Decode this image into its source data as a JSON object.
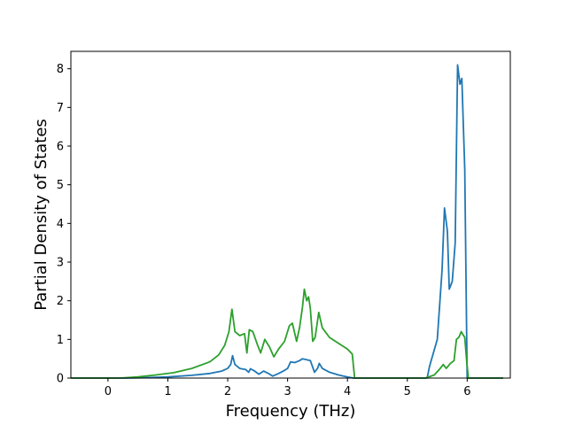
{
  "chart_data": {
    "type": "line",
    "xlabel": "Frequency (THz)",
    "ylabel": "Partial Density of States",
    "xlim": [
      -0.62,
      6.72
    ],
    "ylim": [
      0,
      8.45
    ],
    "xticks": [
      0,
      1,
      2,
      3,
      4,
      5,
      6
    ],
    "yticks": [
      0,
      1,
      2,
      3,
      4,
      5,
      6,
      7,
      8
    ],
    "grid": false,
    "series": [
      {
        "color": "#1f77b4",
        "points": [
          [
            -0.62,
            0
          ],
          [
            0.3,
            0.0
          ],
          [
            0.6,
            0.01
          ],
          [
            1.0,
            0.03
          ],
          [
            1.4,
            0.07
          ],
          [
            1.7,
            0.12
          ],
          [
            1.9,
            0.18
          ],
          [
            2.0,
            0.25
          ],
          [
            2.05,
            0.35
          ],
          [
            2.08,
            0.58
          ],
          [
            2.12,
            0.35
          ],
          [
            2.2,
            0.25
          ],
          [
            2.3,
            0.22
          ],
          [
            2.35,
            0.15
          ],
          [
            2.38,
            0.24
          ],
          [
            2.45,
            0.18
          ],
          [
            2.52,
            0.1
          ],
          [
            2.6,
            0.18
          ],
          [
            2.68,
            0.12
          ],
          [
            2.75,
            0.05
          ],
          [
            2.85,
            0.12
          ],
          [
            2.95,
            0.2
          ],
          [
            3.0,
            0.25
          ],
          [
            3.05,
            0.42
          ],
          [
            3.12,
            0.4
          ],
          [
            3.2,
            0.45
          ],
          [
            3.25,
            0.5
          ],
          [
            3.3,
            0.48
          ],
          [
            3.38,
            0.45
          ],
          [
            3.45,
            0.15
          ],
          [
            3.5,
            0.25
          ],
          [
            3.53,
            0.38
          ],
          [
            3.58,
            0.25
          ],
          [
            3.7,
            0.15
          ],
          [
            3.85,
            0.08
          ],
          [
            4.0,
            0.03
          ],
          [
            4.1,
            0.0
          ],
          [
            5.33,
            0.0
          ],
          [
            5.37,
            0.3
          ],
          [
            5.5,
            1.0
          ],
          [
            5.58,
            2.8
          ],
          [
            5.62,
            4.4
          ],
          [
            5.67,
            3.8
          ],
          [
            5.7,
            2.3
          ],
          [
            5.75,
            2.5
          ],
          [
            5.8,
            3.5
          ],
          [
            5.84,
            8.1
          ],
          [
            5.88,
            7.6
          ],
          [
            5.91,
            7.75
          ],
          [
            5.96,
            5.4
          ],
          [
            6.0,
            0.0
          ],
          [
            6.6,
            0.0
          ]
        ]
      },
      {
        "color": "#2ca02c",
        "points": [
          [
            -0.62,
            0
          ],
          [
            0.2,
            0.0
          ],
          [
            0.5,
            0.03
          ],
          [
            0.8,
            0.08
          ],
          [
            1.1,
            0.14
          ],
          [
            1.4,
            0.25
          ],
          [
            1.7,
            0.42
          ],
          [
            1.85,
            0.6
          ],
          [
            1.95,
            0.85
          ],
          [
            2.02,
            1.2
          ],
          [
            2.07,
            1.78
          ],
          [
            2.12,
            1.2
          ],
          [
            2.2,
            1.1
          ],
          [
            2.28,
            1.15
          ],
          [
            2.32,
            0.65
          ],
          [
            2.36,
            1.25
          ],
          [
            2.42,
            1.2
          ],
          [
            2.5,
            0.85
          ],
          [
            2.55,
            0.65
          ],
          [
            2.62,
            1.0
          ],
          [
            2.7,
            0.8
          ],
          [
            2.77,
            0.55
          ],
          [
            2.85,
            0.75
          ],
          [
            2.95,
            0.95
          ],
          [
            3.03,
            1.35
          ],
          [
            3.08,
            1.42
          ],
          [
            3.15,
            0.95
          ],
          [
            3.2,
            1.3
          ],
          [
            3.25,
            1.85
          ],
          [
            3.28,
            2.3
          ],
          [
            3.32,
            2.0
          ],
          [
            3.35,
            2.1
          ],
          [
            3.38,
            1.8
          ],
          [
            3.42,
            0.95
          ],
          [
            3.46,
            1.05
          ],
          [
            3.52,
            1.7
          ],
          [
            3.58,
            1.3
          ],
          [
            3.7,
            1.05
          ],
          [
            3.85,
            0.9
          ],
          [
            4.0,
            0.75
          ],
          [
            4.08,
            0.62
          ],
          [
            4.12,
            0.0
          ],
          [
            5.3,
            0.0
          ],
          [
            5.45,
            0.08
          ],
          [
            5.55,
            0.25
          ],
          [
            5.6,
            0.35
          ],
          [
            5.65,
            0.25
          ],
          [
            5.72,
            0.38
          ],
          [
            5.78,
            0.45
          ],
          [
            5.82,
            1.0
          ],
          [
            5.86,
            1.05
          ],
          [
            5.9,
            1.2
          ],
          [
            5.96,
            1.05
          ],
          [
            5.99,
            0.45
          ],
          [
            6.02,
            0.0
          ],
          [
            6.6,
            0.0
          ]
        ]
      }
    ]
  }
}
